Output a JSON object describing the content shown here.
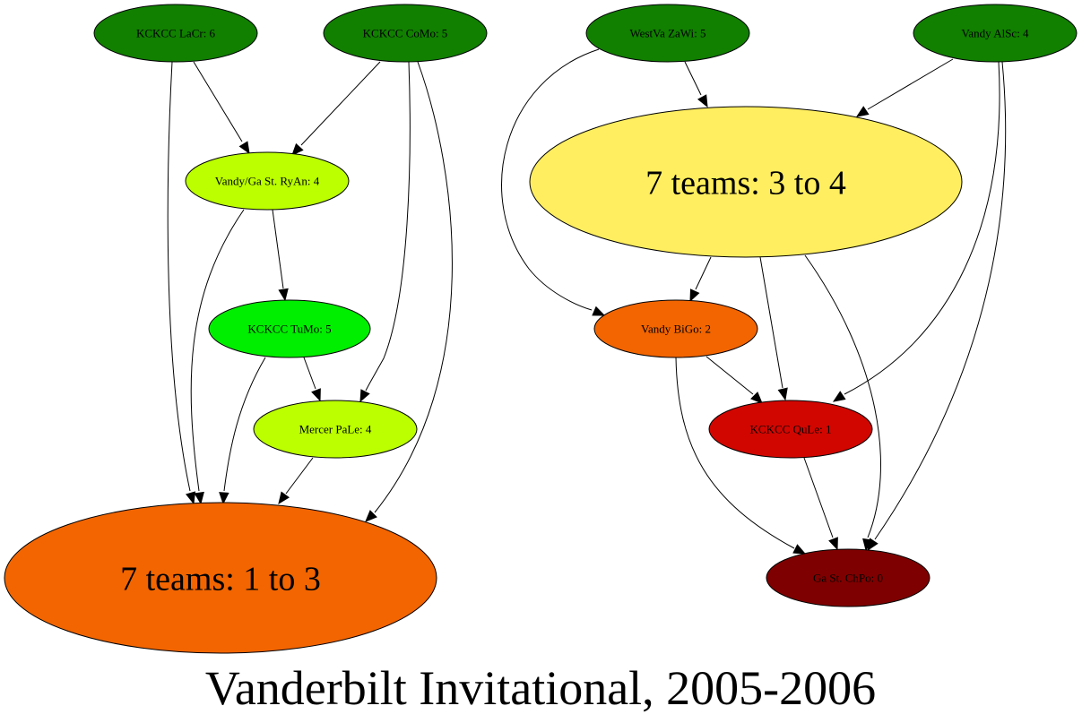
{
  "title": "Vanderbilt Invitational, 2005-2006",
  "nodes": [
    {
      "id": "lacr",
      "label": "KCKCC LaCr: 6",
      "color": "#117f00"
    },
    {
      "id": "como",
      "label": "KCKCC CoMo: 5",
      "color": "#117f00"
    },
    {
      "id": "zawi",
      "label": "WestVa ZaWi: 5",
      "color": "#117f00"
    },
    {
      "id": "alsc",
      "label": "Vandy AlSc: 4",
      "color": "#117f00"
    },
    {
      "id": "ryan",
      "label": "Vandy/Ga St. RyAn: 4",
      "color": "#bbff00"
    },
    {
      "id": "g34",
      "label": "7 teams: 3 to 4",
      "color": "#ffee5f"
    },
    {
      "id": "tumo",
      "label": "KCKCC TuMo: 5",
      "color": "#00ee00"
    },
    {
      "id": "bigo",
      "label": "Vandy BiGo: 2",
      "color": "#f26500"
    },
    {
      "id": "pale",
      "label": "Mercer PaLe: 4",
      "color": "#bbff00"
    },
    {
      "id": "qule",
      "label": "KCKCC QuLe: 1",
      "color": "#d10600"
    },
    {
      "id": "g13",
      "label": "7 teams: 1 to 3",
      "color": "#f26500"
    },
    {
      "id": "chpo",
      "label": "Ga St. ChPo: 0",
      "color": "#7f0000"
    }
  ],
  "edges": [
    {
      "from": "lacr",
      "to": "ryan"
    },
    {
      "from": "lacr",
      "to": "g13"
    },
    {
      "from": "como",
      "to": "ryan"
    },
    {
      "from": "como",
      "to": "pale"
    },
    {
      "from": "como",
      "to": "g13"
    },
    {
      "from": "ryan",
      "to": "tumo"
    },
    {
      "from": "ryan",
      "to": "g13"
    },
    {
      "from": "tumo",
      "to": "pale"
    },
    {
      "from": "tumo",
      "to": "g13"
    },
    {
      "from": "pale",
      "to": "g13"
    },
    {
      "from": "zawi",
      "to": "g34"
    },
    {
      "from": "zawi",
      "to": "bigo"
    },
    {
      "from": "alsc",
      "to": "g34"
    },
    {
      "from": "alsc",
      "to": "qule"
    },
    {
      "from": "alsc",
      "to": "chpo"
    },
    {
      "from": "g34",
      "to": "bigo"
    },
    {
      "from": "g34",
      "to": "qule"
    },
    {
      "from": "g34",
      "to": "chpo"
    },
    {
      "from": "bigo",
      "to": "qule"
    },
    {
      "from": "bigo",
      "to": "chpo"
    },
    {
      "from": "qule",
      "to": "chpo"
    }
  ]
}
